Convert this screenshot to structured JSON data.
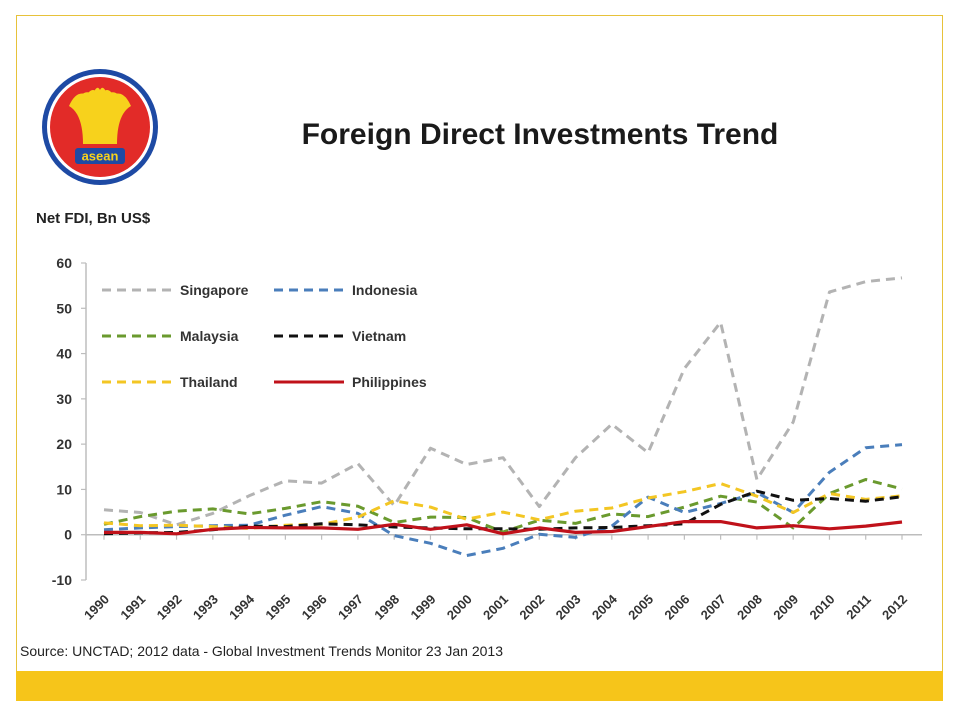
{
  "slide": {
    "title": "Foreign Direct Investments Trend",
    "logo_text": "asean",
    "colors": {
      "border": "#e7c23a",
      "footer_bar": "#f6c51a",
      "logo_red": "#e22b28",
      "logo_blue": "#1e4aa4",
      "logo_yellow": "#f7d21c"
    }
  },
  "chart_data": {
    "type": "line",
    "ylabel": "Net FDI, Bn US$",
    "source": "Source: UNCTAD; 2012 data - Global Investment Trends Monitor 23 Jan 2013",
    "ylim": [
      -10,
      60
    ],
    "yticks": [
      -10,
      0,
      10,
      20,
      30,
      40,
      50,
      60
    ],
    "grid": false,
    "legend_position": "top-left",
    "x": [
      "1990",
      "1991",
      "1992",
      "1993",
      "1994",
      "1995",
      "1996",
      "1997",
      "1998",
      "1999",
      "2000",
      "2001",
      "2002",
      "2003",
      "2004",
      "2005",
      "2006",
      "2007",
      "2008",
      "2009",
      "2010",
      "2011",
      "2012"
    ],
    "series": [
      {
        "name": "Singapore",
        "color": "#b3b3b3",
        "style": "dashed",
        "values": [
          5.5,
          4.9,
          2.2,
          4.7,
          8.6,
          11.9,
          11.4,
          15.7,
          6.4,
          19.1,
          15.5,
          17,
          6.2,
          17,
          24.4,
          18.1,
          36.7,
          46.9,
          12.2,
          24.9,
          53.6,
          55.9,
          56.7
        ]
      },
      {
        "name": "Indonesia",
        "color": "#4a7ebb",
        "style": "dashed",
        "values": [
          1.1,
          1.5,
          1.8,
          2,
          2.1,
          4.3,
          6.2,
          4.7,
          -0.2,
          -1.9,
          -4.6,
          -3,
          0.1,
          -0.6,
          1.9,
          8.3,
          4.9,
          6.9,
          9.3,
          4.9,
          13.8,
          19.2,
          19.9
        ]
      },
      {
        "name": "Malaysia",
        "color": "#6a9a2e",
        "style": "dashed",
        "values": [
          2.3,
          4,
          5.2,
          5.7,
          4.6,
          5.8,
          7.3,
          6.3,
          2.7,
          3.9,
          3.8,
          0.6,
          3.2,
          2.5,
          4.6,
          4,
          6.1,
          8.5,
          7.2,
          1.5,
          9.1,
          12.2,
          10.1
        ]
      },
      {
        "name": "Vietnam",
        "color": "#111111",
        "style": "dashed",
        "values": [
          0.2,
          0.4,
          0.5,
          1.1,
          1.9,
          1.8,
          2.4,
          2.2,
          1.7,
          1.5,
          1.3,
          1.3,
          1.2,
          1.5,
          1.6,
          2,
          2.4,
          6.7,
          9.6,
          7.6,
          8,
          7.4,
          8.4
        ]
      },
      {
        "name": "Thailand",
        "color": "#f3c623",
        "style": "dashed",
        "values": [
          2.6,
          2,
          2.1,
          1.8,
          1.4,
          2.1,
          2.3,
          3.9,
          7.5,
          6.1,
          3.4,
          5,
          3.3,
          5.2,
          5.9,
          8.1,
          9.5,
          11.3,
          8.5,
          4.9,
          9.1,
          7.8,
          8.6
        ]
      },
      {
        "name": "Philippines",
        "color": "#c0111a",
        "style": "solid",
        "values": [
          0.5,
          0.5,
          0.2,
          1.2,
          1.6,
          1.5,
          1.5,
          1.2,
          2.3,
          1.2,
          2.2,
          0.2,
          1.5,
          0.5,
          0.7,
          1.8,
          2.9,
          2.9,
          1.5,
          2,
          1.3,
          1.9,
          2.8
        ]
      }
    ]
  }
}
